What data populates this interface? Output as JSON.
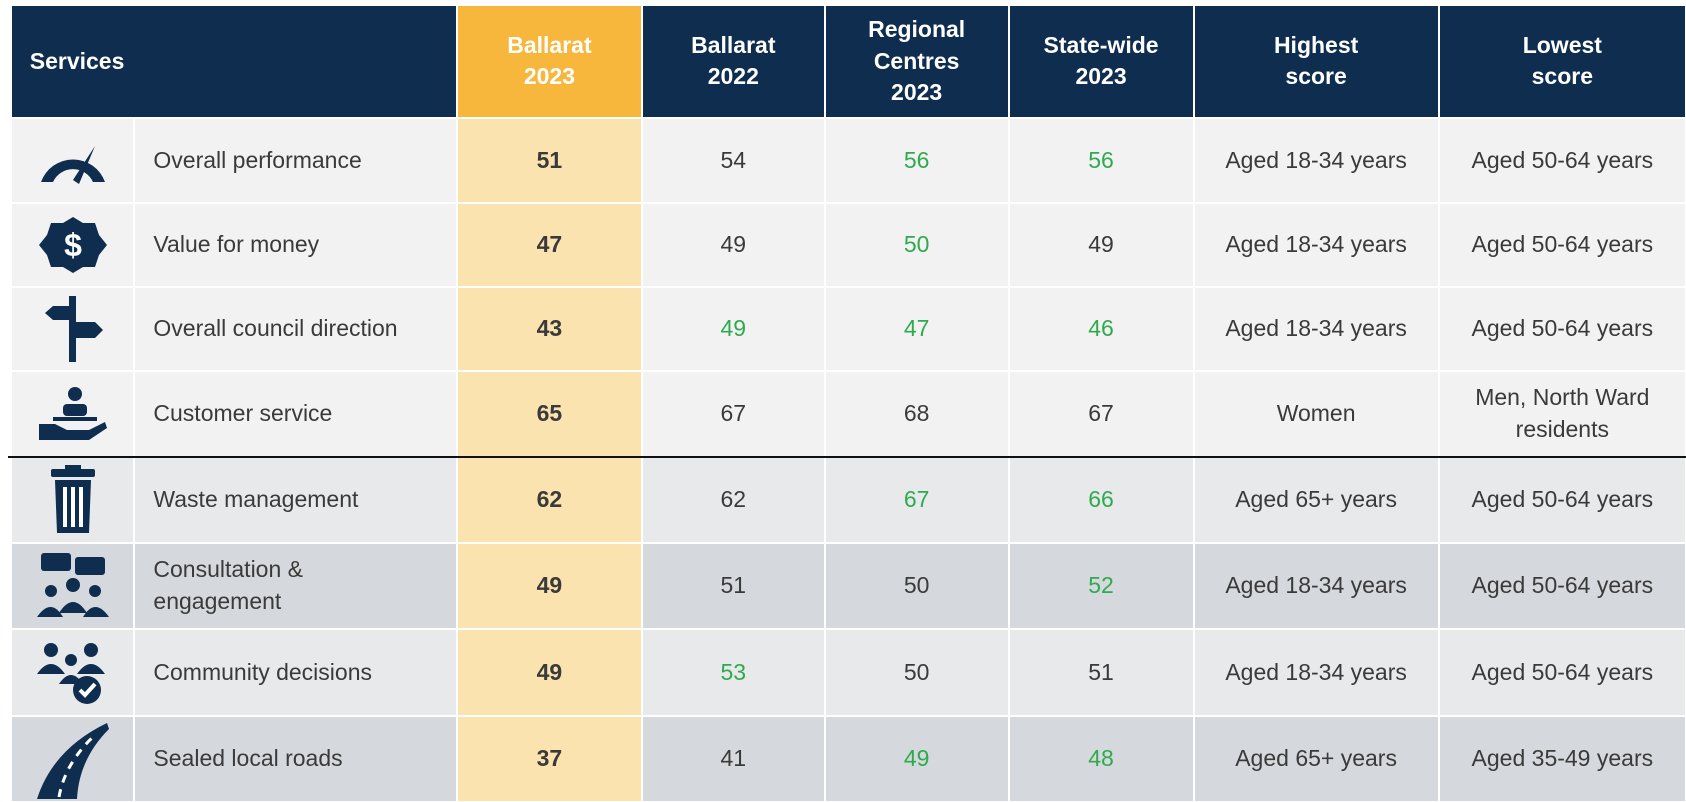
{
  "table": {
    "header": [
      "Services",
      "Ballarat 2023",
      "Ballarat 2022",
      "Regional Centres 2023",
      "State-wide 2023",
      "Highest score",
      "Lowest score"
    ],
    "highlight_color": "#2eaa4f",
    "text_color": "#3a3a3a",
    "rows": [
      {
        "service": "Overall performance",
        "values": [
          51,
          54,
          56,
          56
        ],
        "green": [
          false,
          false,
          true,
          true
        ],
        "highest": "Aged 18-34 years",
        "lowest": "Aged 50-64 years"
      },
      {
        "service": "Value for money",
        "values": [
          47,
          49,
          50,
          49
        ],
        "green": [
          false,
          false,
          true,
          false
        ],
        "highest": "Aged 18-34 years",
        "lowest": "Aged 50-64 years"
      },
      {
        "service": "Overall council direction",
        "values": [
          43,
          49,
          47,
          46
        ],
        "green": [
          false,
          true,
          true,
          true
        ],
        "highest": "Aged 18-34 years",
        "lowest": "Aged 50-64 years"
      },
      {
        "service": "Customer service",
        "values": [
          65,
          67,
          68,
          67
        ],
        "green": [
          false,
          false,
          false,
          false
        ],
        "highest": "Women",
        "lowest": "Men, North Ward residents"
      },
      {
        "service": "Waste management",
        "values": [
          62,
          62,
          67,
          66
        ],
        "green": [
          false,
          false,
          true,
          true
        ],
        "highest": "Aged 65+ years",
        "lowest": "Aged 50-64 years"
      },
      {
        "service": "Consultation & engagement",
        "values": [
          49,
          51,
          50,
          52
        ],
        "green": [
          false,
          false,
          false,
          true
        ],
        "highest": "Aged 18-34 years",
        "lowest": "Aged 50-64 years"
      },
      {
        "service": "Community decisions",
        "values": [
          49,
          53,
          50,
          51
        ],
        "green": [
          false,
          true,
          false,
          false
        ],
        "highest": "Aged 18-34 years",
        "lowest": "Aged 50-64 years"
      },
      {
        "service": "Sealed local roads",
        "values": [
          37,
          41,
          49,
          48
        ],
        "green": [
          false,
          false,
          true,
          true
        ],
        "highest": "Aged 65+ years",
        "lowest": "Aged 35-49 years"
      }
    ]
  }
}
